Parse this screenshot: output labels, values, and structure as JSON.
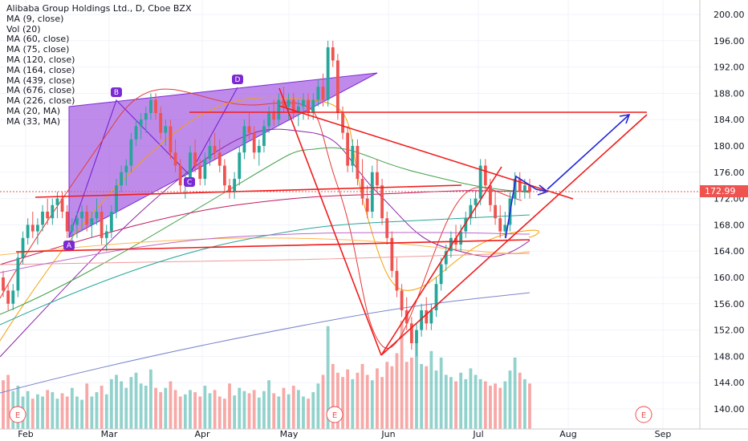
{
  "legend": {
    "title": "Alibaba Group Holdings Ltd., D, Cboe BZX",
    "indicators": [
      "MA (9, close)",
      "Vol (20)",
      "MA (60, close)",
      "MA (75, close)",
      "MA (120, close)",
      "MA (164, close)",
      "MA (439, close)",
      "MA (676, close)",
      "MA (226, close)",
      "MA (20, MA)",
      "MA (33, MA)"
    ]
  },
  "last_price_label": "172.99",
  "colors": {
    "up": "#26a69a",
    "down": "#ef5350",
    "wedge_fill": "#9c4de0",
    "trendline": "#f01c1c",
    "arrow": "#1f24d8",
    "pattern_label": "#7b2ad3",
    "earnings": "#ef5350"
  },
  "chart_data": {
    "type": "candlestick",
    "title": "Alibaba Group Holdings Ltd., D, Cboe BZX",
    "y_axis": {
      "ticks": [
        "140.00",
        "144.00",
        "148.00",
        "152.00",
        "156.00",
        "160.00",
        "164.00",
        "168.00",
        "172.00",
        "176.00",
        "180.00",
        "184.00",
        "188.00",
        "192.00",
        "196.00",
        "200.00"
      ],
      "range": [
        138.5,
        201.5
      ],
      "last_price": 172.99
    },
    "x_axis": {
      "ticks": [
        "Feb",
        "Mar",
        "Apr",
        "May",
        "Jun",
        "Jul",
        "Aug",
        "Sep"
      ]
    },
    "pattern_labels": [
      "A",
      "B",
      "C",
      "D"
    ],
    "earnings_markers": [
      "E",
      "E",
      "E"
    ],
    "candles": [
      [
        160,
        161,
        157,
        158
      ],
      [
        158,
        159,
        155,
        156
      ],
      [
        156,
        159,
        155,
        158
      ],
      [
        158,
        164,
        157,
        163
      ],
      [
        163,
        167,
        162,
        166
      ],
      [
        166,
        169,
        165,
        168
      ],
      [
        168,
        170,
        166,
        167
      ],
      [
        167,
        169,
        165,
        168
      ],
      [
        168,
        171,
        167,
        170
      ],
      [
        170,
        172,
        168,
        169
      ],
      [
        169,
        172,
        168,
        171
      ],
      [
        171,
        173,
        169,
        172
      ],
      [
        172,
        173,
        169,
        170
      ],
      [
        170,
        171,
        166,
        167
      ],
      [
        167,
        169,
        165,
        168
      ],
      [
        168,
        170,
        166,
        169
      ],
      [
        169,
        171,
        167,
        170
      ],
      [
        170,
        171,
        167,
        168
      ],
      [
        168,
        170,
        166,
        169
      ],
      [
        169,
        172,
        168,
        170
      ],
      [
        170,
        171,
        165,
        166
      ],
      [
        166,
        168,
        164,
        167
      ],
      [
        167,
        171,
        166,
        170
      ],
      [
        170,
        175,
        169,
        174
      ],
      [
        174,
        177,
        173,
        176
      ],
      [
        176,
        178,
        174,
        177
      ],
      [
        177,
        182,
        176,
        181
      ],
      [
        181,
        184,
        180,
        183
      ],
      [
        183,
        185,
        181,
        184
      ],
      [
        184,
        186,
        182,
        185
      ],
      [
        185,
        188,
        184,
        187
      ],
      [
        187,
        188,
        184,
        185
      ],
      [
        185,
        186,
        181,
        182
      ],
      [
        182,
        184,
        180,
        183
      ],
      [
        183,
        184,
        178,
        179
      ],
      [
        179,
        181,
        176,
        177
      ],
      [
        177,
        178,
        173,
        174
      ],
      [
        174,
        176,
        172,
        175
      ],
      [
        175,
        180,
        174,
        179
      ],
      [
        179,
        181,
        176,
        177
      ],
      [
        177,
        178,
        174,
        175
      ],
      [
        175,
        179,
        174,
        178
      ],
      [
        178,
        181,
        177,
        180
      ],
      [
        180,
        182,
        178,
        179
      ],
      [
        179,
        181,
        176,
        177
      ],
      [
        177,
        178,
        173,
        174
      ],
      [
        174,
        175,
        172,
        173
      ],
      [
        173,
        176,
        172,
        175
      ],
      [
        175,
        180,
        174,
        179
      ],
      [
        179,
        184,
        178,
        183
      ],
      [
        183,
        185,
        181,
        182
      ],
      [
        182,
        183,
        178,
        179
      ],
      [
        179,
        181,
        177,
        180
      ],
      [
        180,
        184,
        179,
        183
      ],
      [
        183,
        186,
        182,
        185
      ],
      [
        185,
        187,
        183,
        184
      ],
      [
        184,
        188,
        183,
        187
      ],
      [
        187,
        189,
        185,
        186
      ],
      [
        186,
        188,
        184,
        187
      ],
      [
        187,
        188,
        184,
        185
      ],
      [
        185,
        187,
        183,
        186
      ],
      [
        186,
        188,
        184,
        187
      ],
      [
        187,
        188,
        184,
        185
      ],
      [
        185,
        188,
        184,
        187
      ],
      [
        187,
        190,
        186,
        189
      ],
      [
        189,
        191,
        186,
        187
      ],
      [
        187,
        196,
        186,
        195
      ],
      [
        195,
        196,
        192,
        193
      ],
      [
        193,
        194,
        184,
        185
      ],
      [
        185,
        186,
        181,
        182
      ],
      [
        182,
        183,
        176,
        177
      ],
      [
        177,
        181,
        176,
        180
      ],
      [
        180,
        181,
        174,
        175
      ],
      [
        175,
        178,
        171,
        172
      ],
      [
        172,
        174,
        169,
        170
      ],
      [
        170,
        177,
        169,
        176
      ],
      [
        176,
        178,
        173,
        174
      ],
      [
        174,
        175,
        168,
        169
      ],
      [
        169,
        170,
        165,
        166
      ],
      [
        166,
        167,
        160,
        161
      ],
      [
        161,
        163,
        157,
        158
      ],
      [
        158,
        159,
        154,
        155
      ],
      [
        155,
        157,
        152,
        153
      ],
      [
        153,
        154,
        149,
        150
      ],
      [
        150,
        153,
        148,
        152
      ],
      [
        152,
        156,
        151,
        155
      ],
      [
        155,
        157,
        152,
        153
      ],
      [
        153,
        156,
        152,
        155
      ],
      [
        155,
        160,
        154,
        159
      ],
      [
        159,
        163,
        158,
        162
      ],
      [
        162,
        165,
        161,
        164
      ],
      [
        164,
        167,
        163,
        166
      ],
      [
        166,
        168,
        164,
        165
      ],
      [
        165,
        168,
        164,
        167
      ],
      [
        167,
        170,
        166,
        169
      ],
      [
        169,
        172,
        168,
        171
      ],
      [
        171,
        173,
        169,
        172
      ],
      [
        172,
        178,
        171,
        177
      ],
      [
        177,
        178,
        173,
        174
      ],
      [
        174,
        175,
        170,
        171
      ],
      [
        171,
        173,
        168,
        169
      ],
      [
        169,
        171,
        166,
        167
      ],
      [
        167,
        170,
        166,
        168
      ],
      [
        168,
        173,
        167,
        172
      ],
      [
        172,
        176,
        171,
        175
      ],
      [
        175,
        176,
        172,
        173
      ],
      [
        173,
        175,
        172,
        174
      ],
      [
        174,
        175,
        172,
        173
      ]
    ],
    "volumes": [
      0.45,
      0.5,
      0.35,
      0.4,
      0.3,
      0.35,
      0.28,
      0.32,
      0.3,
      0.36,
      0.34,
      0.28,
      0.33,
      0.3,
      0.38,
      0.3,
      0.27,
      0.42,
      0.3,
      0.34,
      0.4,
      0.32,
      0.46,
      0.5,
      0.44,
      0.38,
      0.48,
      0.52,
      0.42,
      0.4,
      0.55,
      0.38,
      0.34,
      0.38,
      0.44,
      0.36,
      0.3,
      0.32,
      0.36,
      0.34,
      0.3,
      0.4,
      0.33,
      0.36,
      0.3,
      0.28,
      0.42,
      0.31,
      0.38,
      0.35,
      0.33,
      0.36,
      0.29,
      0.35,
      0.45,
      0.33,
      0.3,
      0.38,
      0.32,
      0.4,
      0.36,
      0.3,
      0.28,
      0.34,
      0.42,
      0.5,
      0.95,
      0.6,
      0.52,
      0.48,
      0.55,
      0.46,
      0.52,
      0.6,
      0.5,
      0.45,
      0.56,
      0.48,
      0.62,
      0.58,
      0.7,
      1.0,
      0.62,
      0.66,
      0.8,
      0.6,
      0.58,
      0.72,
      0.54,
      0.66,
      0.5,
      0.48,
      0.44,
      0.52,
      0.46,
      0.56,
      0.5,
      0.46,
      0.44,
      0.4,
      0.42,
      0.38,
      0.44,
      0.54,
      0.66,
      0.52,
      0.46,
      0.42
    ]
  }
}
